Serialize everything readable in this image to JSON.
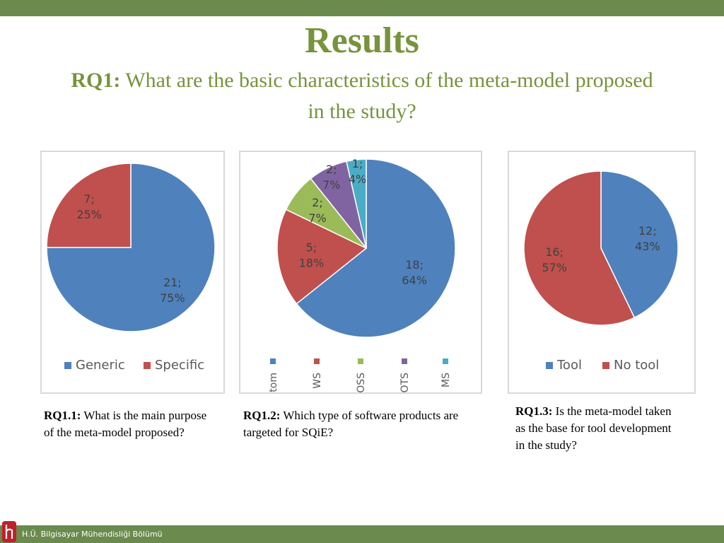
{
  "header": {
    "title": "Results",
    "rq_label": "RQ1:",
    "rq_text": "What are the basic characteristics of the meta-model proposed in the study?"
  },
  "captions": [
    {
      "label": "RQ1.1:",
      "text": "What is the main purpose of the meta-model proposed?"
    },
    {
      "label": "RQ1.2:",
      "text": "Which type of software products are targeted for SQiE?"
    },
    {
      "label": "RQ1.3:",
      "text": "Is the meta-model taken as the base for tool development in the study?"
    }
  ],
  "footer": {
    "text": "H.Ü. Bilgisayar Mühendisliği Bölümü"
  },
  "colors": {
    "accent": "#77933c",
    "bar": "#6b8a4e"
  },
  "chart_data": [
    {
      "type": "pie",
      "title": "",
      "slices": [
        {
          "label": "Generic",
          "value": 21,
          "percent": "75%",
          "color": "#4f81bd"
        },
        {
          "label": "Specific",
          "value": 7,
          "percent": "25%",
          "color": "#c0504d"
        }
      ],
      "legend": "bottom"
    },
    {
      "type": "pie",
      "title": "",
      "slices": [
        {
          "label": "Custom",
          "value": 18,
          "percent": "64%",
          "color": "#4f81bd"
        },
        {
          "label": "WS",
          "value": 5,
          "percent": "18%",
          "color": "#c0504d"
        },
        {
          "label": "OSS",
          "value": 2,
          "percent": "7%",
          "color": "#9bbb59"
        },
        {
          "label": "COTS",
          "value": 2,
          "percent": "7%",
          "color": "#8064a2"
        },
        {
          "label": "MS",
          "value": 1,
          "percent": "4%",
          "color": "#4bacc6"
        }
      ],
      "legend": "bottom-vertical"
    },
    {
      "type": "pie",
      "title": "",
      "slices": [
        {
          "label": "Tool",
          "value": 12,
          "percent": "43%",
          "color": "#4f81bd"
        },
        {
          "label": "No tool",
          "value": 16,
          "percent": "57%",
          "color": "#c0504d"
        }
      ],
      "legend": "bottom"
    }
  ]
}
